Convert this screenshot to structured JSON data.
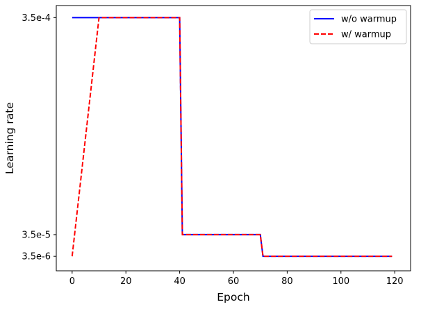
{
  "chart_data": {
    "type": "line",
    "title": "",
    "xlabel": "Epoch",
    "ylabel": "Learning rate",
    "xlim": [
      -5.9,
      125.9
    ],
    "x_ticks": [
      0,
      20,
      40,
      60,
      80,
      100,
      120
    ],
    "y_ticks": [
      {
        "value": 0.00035,
        "label": "3.5e-4"
      },
      {
        "value": 3.5e-05,
        "label": "3.5e-5"
      },
      {
        "value": 3.5e-06,
        "label": "3.5e-6"
      }
    ],
    "ylim": [
      -1.75e-05,
      0.0003675
    ],
    "grid": false,
    "legend_position": "top-right",
    "series": [
      {
        "name": "w/o warmup",
        "color": "#0000ff",
        "style": "solid",
        "x": [
          0,
          40,
          41,
          70,
          71,
          119
        ],
        "y": [
          0.00035,
          0.00035,
          3.5e-05,
          3.5e-05,
          3.5e-06,
          3.5e-06
        ]
      },
      {
        "name": "w/ warmup",
        "color": "#ff0000",
        "style": "dashed",
        "x": [
          0,
          10,
          40,
          41,
          70,
          71,
          119
        ],
        "y": [
          3.5e-06,
          0.00035,
          0.00035,
          3.5e-05,
          3.5e-05,
          3.5e-06,
          3.5e-06
        ]
      }
    ]
  }
}
